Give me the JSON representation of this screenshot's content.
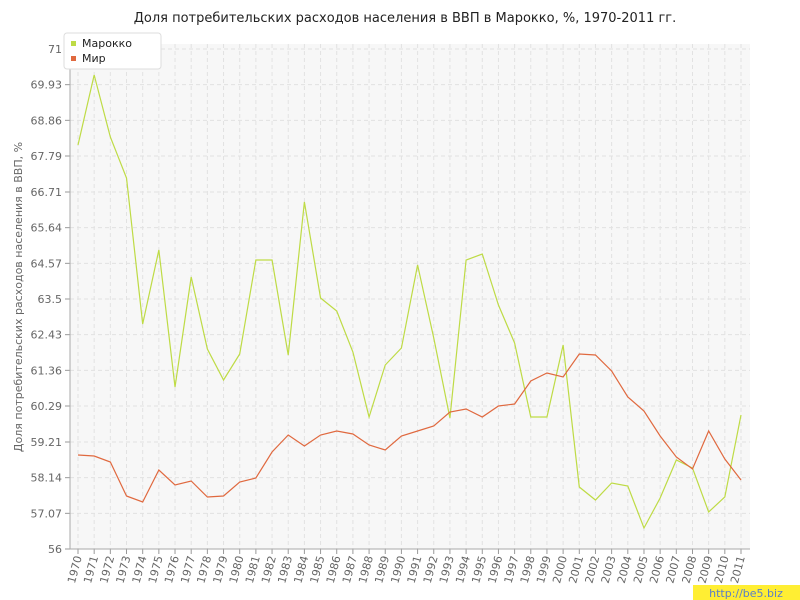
{
  "chart_data": {
    "type": "line",
    "title": "Доля потребительских расходов населения в ВВП в Марокко, %, 1970-2011 гг.",
    "y_label": "Доля потребительских расходов населения в ВВП, %",
    "watermark": "http://be5.biz",
    "categories": [
      "1970",
      "1971",
      "1972",
      "1973",
      "1974",
      "1975",
      "1976",
      "1977",
      "1978",
      "1979",
      "1980",
      "1981",
      "1982",
      "1983",
      "1984",
      "1985",
      "1986",
      "1987",
      "1988",
      "1989",
      "1990",
      "1991",
      "1992",
      "1993",
      "1994",
      "1995",
      "1996",
      "1997",
      "1998",
      "1999",
      "2000",
      "2001",
      "2002",
      "2003",
      "2004",
      "2005",
      "2006",
      "2007",
      "2008",
      "2009",
      "2010",
      "2011"
    ],
    "series": [
      {
        "name": "Марокко",
        "color": "#bedb45",
        "values": [
          68.12,
          70.22,
          68.36,
          67.13,
          62.75,
          64.97,
          60.86,
          64.16,
          62.0,
          61.07,
          61.85,
          64.67,
          64.67,
          61.82,
          66.41,
          63.53,
          63.14,
          61.91,
          59.96,
          61.52,
          62.03,
          64.52,
          62.33,
          59.93,
          64.67,
          64.85,
          63.32,
          62.18,
          59.96,
          59.96,
          62.12,
          57.86,
          57.47,
          57.98,
          57.89,
          56.63,
          57.53,
          58.67,
          58.43,
          57.11,
          57.56,
          60.02
        ]
      },
      {
        "name": "Мир",
        "color": "#e0693f",
        "values": [
          58.82,
          58.79,
          58.61,
          57.59,
          57.41,
          58.37,
          57.92,
          58.04,
          57.56,
          57.59,
          58.01,
          58.13,
          58.91,
          59.42,
          59.09,
          59.42,
          59.54,
          59.45,
          59.12,
          58.97,
          59.39,
          59.54,
          59.69,
          60.11,
          60.2,
          59.96,
          60.29,
          60.35,
          61.04,
          61.28,
          61.16,
          61.85,
          61.82,
          61.34,
          60.56,
          60.14,
          59.39,
          58.76,
          58.4,
          59.54,
          58.7,
          58.07
        ]
      }
    ],
    "ylim": [
      56,
      71
    ],
    "yticks": [
      56,
      57.07,
      58.14,
      59.21,
      60.29,
      61.36,
      62.43,
      63.5,
      64.57,
      65.64,
      66.71,
      67.79,
      68.86,
      69.93,
      71
    ],
    "grid": true,
    "legend": "top-left"
  }
}
